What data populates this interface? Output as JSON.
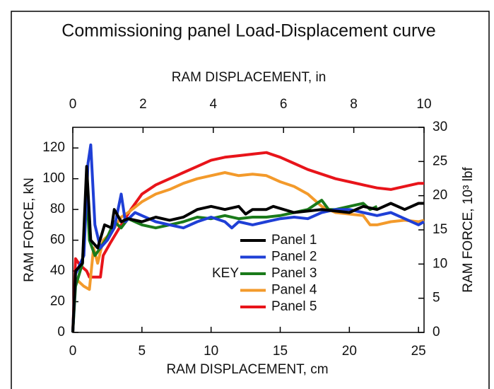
{
  "chart_data": {
    "type": "line",
    "title": "Commissioning panel Load-Displacement curve",
    "xlabel": "RAM DISPLACEMENT, cm",
    "x2label": "RAM DISPLACEMENT, in",
    "ylabel": "RAM FORCE, kN",
    "y2label": "RAM FORCE, 10³ lbf",
    "legend_title": "KEY",
    "xlim": [
      0,
      25.4
    ],
    "xticks": [
      0,
      5,
      10,
      15,
      20,
      25
    ],
    "x2lim": [
      0,
      10
    ],
    "x2ticks": [
      0,
      2,
      4,
      6,
      8,
      10
    ],
    "ylim": [
      0,
      133.45
    ],
    "yticks": [
      0,
      20,
      40,
      60,
      80,
      100,
      120
    ],
    "y2lim": [
      0,
      30
    ],
    "y2ticks": [
      0,
      5,
      10,
      15,
      20,
      25,
      30
    ],
    "series": [
      {
        "name": "Panel 1",
        "color": "#000000",
        "x": [
          0,
          0.2,
          0.7,
          1.0,
          1.3,
          1.8,
          2.3,
          2.8,
          3,
          3.5,
          4,
          5,
          6,
          7,
          8,
          9,
          10,
          11,
          12,
          12.5,
          13,
          14,
          14.5,
          16,
          18,
          20,
          21,
          22,
          23,
          24,
          25,
          25.4
        ],
        "values": [
          0,
          40,
          45,
          108,
          60,
          55,
          70,
          68,
          80,
          72,
          74,
          72,
          75,
          73,
          75,
          80,
          82,
          80,
          82,
          77,
          80,
          80,
          82,
          78,
          80,
          78,
          82,
          80,
          84,
          80,
          84,
          84
        ]
      },
      {
        "name": "Panel 2",
        "color": "#1f3fd6",
        "x": [
          0,
          0.2,
          0.8,
          1.1,
          1.3,
          1.6,
          2,
          2.5,
          3,
          3.5,
          3.8,
          4.5,
          5,
          6,
          7,
          8,
          9,
          10,
          11,
          11.5,
          12,
          13,
          14,
          15,
          16,
          17,
          18,
          19,
          20,
          21,
          22,
          23,
          24,
          25,
          25.4
        ],
        "values": [
          0,
          38,
          50,
          110,
          122,
          70,
          55,
          60,
          68,
          90,
          72,
          78,
          76,
          72,
          70,
          68,
          72,
          75,
          72,
          68,
          72,
          70,
          72,
          74,
          75,
          74,
          78,
          80,
          80,
          78,
          76,
          78,
          74,
          70,
          72
        ]
      },
      {
        "name": "Panel 3",
        "color": "#1a7a1a",
        "x": [
          0,
          0.2,
          0.7,
          1.0,
          1.2,
          1.6,
          2,
          2.5,
          3,
          3.5,
          4,
          5,
          6,
          7,
          8,
          9,
          10,
          11,
          12,
          13,
          14,
          15,
          16,
          17,
          18,
          18.5,
          19,
          20,
          21,
          21.5,
          22
        ],
        "values": [
          0,
          30,
          45,
          95,
          60,
          50,
          55,
          62,
          72,
          68,
          74,
          70,
          68,
          70,
          72,
          75,
          74,
          76,
          74,
          75,
          75,
          76,
          78,
          80,
          86,
          80,
          80,
          82,
          84,
          80,
          82
        ]
      },
      {
        "name": "Panel 4",
        "color": "#f39a2b",
        "x": [
          0,
          0.2,
          0.8,
          1.2,
          1.5,
          1.8,
          2.2,
          2.8,
          3.5,
          4,
          5,
          6,
          7,
          8,
          9,
          10,
          11,
          12,
          13,
          14,
          15,
          16,
          17,
          18,
          19,
          20,
          21,
          21.5,
          22,
          23,
          24,
          25,
          25.4
        ],
        "values": [
          0,
          35,
          30,
          28,
          55,
          45,
          60,
          65,
          75,
          78,
          85,
          90,
          93,
          97,
          100,
          102,
          104,
          102,
          103,
          102,
          98,
          95,
          90,
          82,
          78,
          77,
          76,
          70,
          70,
          72,
          73,
          72,
          73
        ]
      },
      {
        "name": "Panel 5",
        "color": "#e8141a",
        "x": [
          0,
          0.2,
          0.5,
          1,
          1.2,
          2,
          2.2,
          2.7,
          3.5,
          4.2,
          5,
          6,
          7,
          8,
          9,
          10,
          11,
          12,
          13,
          14,
          15,
          16,
          17,
          18,
          19,
          20,
          21,
          22,
          23,
          24,
          25,
          25.4
        ],
        "values": [
          0,
          48,
          44,
          40,
          36,
          36,
          50,
          58,
          70,
          80,
          90,
          96,
          100,
          104,
          108,
          112,
          114,
          115,
          116,
          117,
          114,
          110,
          106,
          103,
          100,
          98,
          96,
          94,
          93,
          95,
          97,
          97
        ]
      }
    ]
  }
}
